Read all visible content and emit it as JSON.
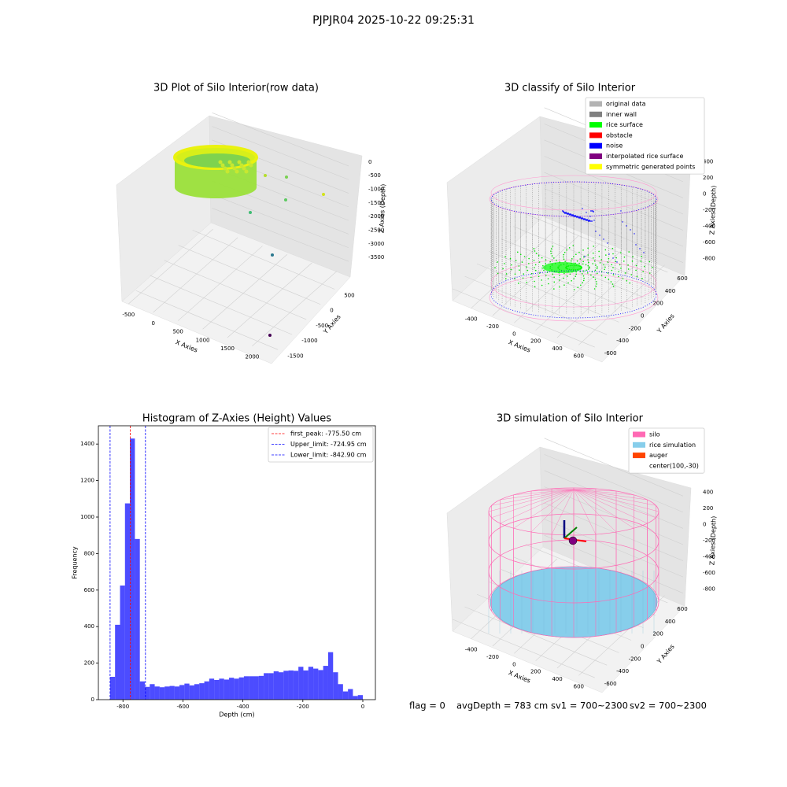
{
  "suptitle": "PJPJR04 2025-10-22 09:25:31",
  "chart_data": [
    {
      "type": "scatter3d",
      "title": "3D Plot of Silo Interior(row data)",
      "xlabel": "X Axies",
      "ylabel": "Y Axies",
      "zlabel": "Z Axies (Depth)",
      "xlim": [
        -600,
        2200
      ],
      "ylim": [
        -1700,
        800
      ],
      "zlim": [
        -3700,
        200
      ],
      "xticks": [
        -500,
        0,
        500,
        1000,
        1500,
        2000
      ],
      "yticks": [
        -1500,
        -1000,
        -500,
        0,
        500
      ],
      "zticks": [
        -3500,
        -3000,
        -2500,
        -2000,
        -1500,
        -1000,
        -500,
        0
      ]
    },
    {
      "type": "scatter3d",
      "title": "3D classify of Silo Interior",
      "xlabel": "X Axies",
      "ylabel": "Y Axies",
      "zlabel": "Z Axies (Depth)",
      "xlim": [
        -500,
        700
      ],
      "ylim": [
        -700,
        700
      ],
      "zlim": [
        -900,
        500
      ],
      "xticks": [
        -400,
        -200,
        0,
        200,
        400,
        600
      ],
      "yticks": [
        -600,
        -400,
        -200,
        0,
        200,
        400,
        600
      ],
      "zticks": [
        -800,
        -600,
        -400,
        -200,
        0,
        200,
        400
      ],
      "legend": [
        {
          "name": "original data",
          "color": "#b3b3b3"
        },
        {
          "name": "inner wall",
          "color": "#808080"
        },
        {
          "name": "rice surface",
          "color": "#00ff00"
        },
        {
          "name": "obstacle",
          "color": "#ff0000"
        },
        {
          "name": "noise",
          "color": "#0000ff"
        },
        {
          "name": "interpolated rice surface",
          "color": "#800080"
        },
        {
          "name": "symmetric generated points",
          "color": "#ffff00"
        }
      ]
    },
    {
      "type": "histogram",
      "title": "Histogram of Z-Axies (Height) Values",
      "xlabel": "Depth (cm)",
      "ylabel": "Frequency",
      "color": "#0000ff",
      "bins": [
        -842.9,
        -826.4,
        -809.8,
        -793.3,
        -776.8,
        -760.2,
        -743.7,
        -727.2,
        -710.7,
        -694.1,
        -677.6,
        -661.1,
        -644.5,
        -628.0,
        -611.5,
        -595.0,
        -578.4,
        -561.9,
        -545.4,
        -528.8,
        -512.3,
        -495.8,
        -479.3,
        -462.7,
        -446.2,
        -429.7,
        -413.1,
        -396.6,
        -380.1,
        -363.6,
        -347.0,
        -330.5,
        -314.0,
        -297.4,
        -280.9,
        -264.4,
        -247.9,
        -231.3,
        -214.8,
        -198.3,
        -181.7,
        -165.2,
        -148.7,
        -132.2,
        -115.6,
        -99.1,
        -82.6,
        -66.0,
        -49.5,
        -33.0,
        -16.5,
        0
      ],
      "values": [
        125,
        410,
        625,
        1075,
        1430,
        880,
        100,
        70,
        85,
        72,
        68,
        72,
        75,
        72,
        80,
        88,
        78,
        85,
        90,
        100,
        115,
        108,
        115,
        110,
        120,
        115,
        122,
        128,
        128,
        128,
        130,
        145,
        145,
        155,
        150,
        158,
        160,
        158,
        180,
        160,
        180,
        170,
        162,
        185,
        260,
        150,
        85,
        45,
        58,
        20,
        25
      ],
      "xlim": [
        -882,
        42
      ],
      "ylim": [
        0,
        1500
      ],
      "xticks": [
        -800,
        -600,
        -400,
        -200,
        0
      ],
      "yticks": [
        0,
        200,
        400,
        600,
        800,
        1000,
        1200,
        1400
      ],
      "lines": [
        {
          "label": "first_peak: -775.50 cm",
          "value": -775.5,
          "color": "#ff0000"
        },
        {
          "label": "Upper_limit: -724.95 cm",
          "value": -724.95,
          "color": "#0000ff"
        },
        {
          "label": "Lower_limit: -842.90 cm",
          "value": -842.9,
          "color": "#0000ff"
        }
      ]
    },
    {
      "type": "surface3d",
      "title": "3D simulation of Silo Interior",
      "xlabel": "X Axies",
      "ylabel": "Y Axies",
      "zlabel": "Z Axies (Depth)",
      "xlim": [
        -500,
        700
      ],
      "ylim": [
        -700,
        700
      ],
      "zlim": [
        -900,
        500
      ],
      "xticks": [
        -400,
        -200,
        0,
        200,
        400,
        600
      ],
      "yticks": [
        -600,
        -400,
        -200,
        0,
        200,
        400,
        600
      ],
      "zticks": [
        -800,
        -600,
        -400,
        -200,
        0,
        200,
        400
      ],
      "legend": [
        {
          "name": "silo",
          "color": "#ff69b4"
        },
        {
          "name": "rice simulation",
          "color": "#87ceeb"
        },
        {
          "name": "auger",
          "color": "#ff4500"
        },
        {
          "name": "center(100,-30)"
        }
      ]
    }
  ],
  "footer": [
    "flag = 0",
    "avgDepth = 783 cm",
    "sv1 = 700~2300",
    "sv2 = 700~2300"
  ]
}
